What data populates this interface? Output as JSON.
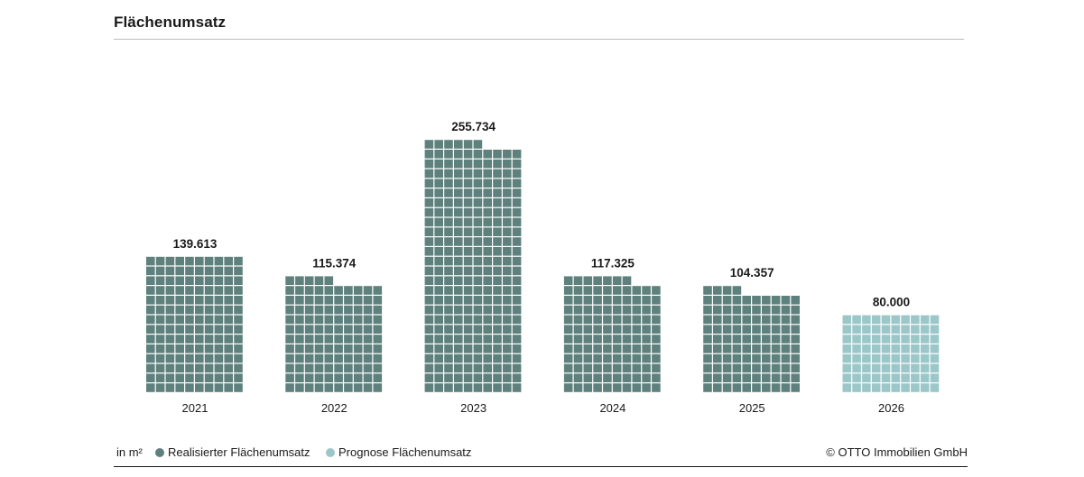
{
  "title": "Flächenumsatz",
  "footer": {
    "unit": "in m²",
    "legend": [
      {
        "label": "Realisierter Flächenumsatz",
        "color": "#5f817d"
      },
      {
        "label": "Prognose Flächenumsatz",
        "color": "#9cc7c9"
      }
    ],
    "copyright": "© OTTO Immobilien GmbH"
  },
  "chart_data": {
    "type": "bar",
    "style": "waffle",
    "categories": [
      "2021",
      "2022",
      "2023",
      "2024",
      "2025",
      "2026"
    ],
    "values": [
      139613,
      115374,
      255734,
      117325,
      104357,
      80000
    ],
    "value_labels": [
      "139.613",
      "115.374",
      "255.734",
      "117.325",
      "104.357",
      "80.000"
    ],
    "series_type": [
      "realisiert",
      "realisiert",
      "realisiert",
      "realisiert",
      "realisiert",
      "prognose"
    ],
    "unit": "m²",
    "colors": {
      "realisiert": "#5f817d",
      "prognose": "#9cc7c9"
    },
    "grid": false,
    "legend_position": "bottom-left"
  }
}
